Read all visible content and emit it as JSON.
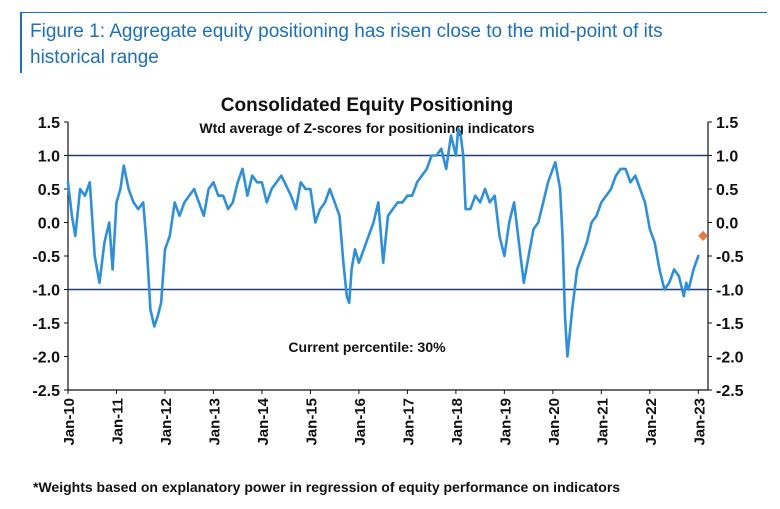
{
  "header": {
    "caption": "Figure 1: Aggregate equity positioning has risen close to the mid-point of its\nhistorical range"
  },
  "footnote": "*Weights based on explanatory power in regression of equity performance on indicators",
  "chart_data": {
    "type": "line",
    "title": "Consolidated Equity Positioning",
    "subtitle": "Wtd average of Z-scores for positioning indicators",
    "annotation": "Current percentile: 30%",
    "xlabel": "",
    "ylabel": "",
    "ylim": [
      -2.5,
      1.5
    ],
    "yticks": [
      1.5,
      1.0,
      0.5,
      0.0,
      -0.5,
      -1.0,
      -1.5,
      -2.0,
      -2.5
    ],
    "ytick_labels": [
      "1.5",
      "1.0",
      "0.5",
      "0.0",
      "-0.5",
      "-1.0",
      "-1.5",
      "-2.0",
      "-2.5"
    ],
    "xlim": [
      2010.0,
      2023.2
    ],
    "xticks": [
      2010,
      2011,
      2012,
      2013,
      2014,
      2015,
      2016,
      2017,
      2018,
      2019,
      2020,
      2021,
      2022,
      2023
    ],
    "xtick_labels": [
      "Jan-10",
      "Jan-11",
      "Jan-12",
      "Jan-13",
      "Jan-14",
      "Jan-15",
      "Jan-16",
      "Jan-17",
      "Jan-18",
      "Jan-19",
      "Jan-20",
      "Jan-21",
      "Jan-22",
      "Jan-23"
    ],
    "reference_lines": [
      1.0,
      -1.0
    ],
    "grid": false,
    "colors": {
      "line": "#2f8fd8",
      "reference": "#1f3f7a",
      "marker": "#e8793a",
      "caption": "#1d6fb8"
    },
    "series": [
      {
        "x": [
          2010.0,
          2010.08,
          2010.15,
          2010.25,
          2010.35,
          2010.45,
          2010.55,
          2010.65,
          2010.75,
          2010.85,
          2010.92,
          2011.0,
          2011.08,
          2011.15,
          2011.25,
          2011.35,
          2011.45,
          2011.55,
          2011.62,
          2011.7,
          2011.78,
          2011.85,
          2011.92,
          2012.0,
          2012.1,
          2012.2,
          2012.3,
          2012.4,
          2012.5,
          2012.6,
          2012.7,
          2012.8,
          2012.9,
          2013.0,
          2013.1,
          2013.2,
          2013.3,
          2013.4,
          2013.5,
          2013.6,
          2013.7,
          2013.8,
          2013.9,
          2014.0,
          2014.1,
          2014.2,
          2014.3,
          2014.4,
          2014.5,
          2014.6,
          2014.7,
          2014.8,
          2014.9,
          2015.0,
          2015.1,
          2015.2,
          2015.3,
          2015.4,
          2015.5,
          2015.6,
          2015.68,
          2015.75,
          2015.8,
          2015.85,
          2015.92,
          2016.0,
          2016.1,
          2016.2,
          2016.3,
          2016.4,
          2016.5,
          2016.6,
          2016.7,
          2016.8,
          2016.9,
          2017.0,
          2017.1,
          2017.2,
          2017.3,
          2017.4,
          2017.5,
          2017.6,
          2017.7,
          2017.8,
          2017.9,
          2018.0,
          2018.05,
          2018.1,
          2018.15,
          2018.2,
          2018.3,
          2018.4,
          2018.5,
          2018.6,
          2018.7,
          2018.8,
          2018.9,
          2019.0,
          2019.1,
          2019.2,
          2019.3,
          2019.4,
          2019.5,
          2019.6,
          2019.7,
          2019.8,
          2019.9,
          2020.0,
          2020.05,
          2020.1,
          2020.15,
          2020.2,
          2020.25,
          2020.3,
          2020.4,
          2020.5,
          2020.6,
          2020.7,
          2020.8,
          2020.9,
          2021.0,
          2021.1,
          2021.2,
          2021.3,
          2021.4,
          2021.5,
          2021.6,
          2021.7,
          2021.8,
          2021.9,
          2022.0,
          2022.1,
          2022.2,
          2022.3,
          2022.4,
          2022.5,
          2022.6,
          2022.7,
          2022.75,
          2022.8,
          2022.9,
          2023.0
        ],
        "values": [
          0.6,
          0.1,
          -0.2,
          0.5,
          0.4,
          0.6,
          -0.5,
          -0.9,
          -0.3,
          0.0,
          -0.7,
          0.3,
          0.5,
          0.85,
          0.5,
          0.3,
          0.2,
          0.3,
          -0.3,
          -1.3,
          -1.55,
          -1.4,
          -1.2,
          -0.4,
          -0.2,
          0.3,
          0.1,
          0.3,
          0.4,
          0.5,
          0.3,
          0.1,
          0.5,
          0.6,
          0.4,
          0.4,
          0.2,
          0.3,
          0.6,
          0.8,
          0.4,
          0.7,
          0.6,
          0.6,
          0.3,
          0.5,
          0.6,
          0.7,
          0.55,
          0.4,
          0.2,
          0.6,
          0.5,
          0.5,
          0.0,
          0.2,
          0.3,
          0.5,
          0.3,
          0.1,
          -0.6,
          -1.1,
          -1.2,
          -0.7,
          -0.4,
          -0.6,
          -0.4,
          -0.2,
          0.0,
          0.3,
          -0.6,
          0.1,
          0.2,
          0.3,
          0.3,
          0.4,
          0.4,
          0.6,
          0.7,
          0.8,
          1.0,
          1.0,
          1.1,
          0.8,
          1.3,
          1.0,
          1.4,
          1.3,
          1.0,
          0.2,
          0.2,
          0.4,
          0.3,
          0.5,
          0.3,
          0.4,
          -0.2,
          -0.5,
          0.0,
          0.3,
          -0.3,
          -0.9,
          -0.5,
          -0.1,
          0.0,
          0.3,
          0.6,
          0.8,
          0.9,
          0.7,
          0.5,
          -0.2,
          -1.4,
          -2.0,
          -1.3,
          -0.7,
          -0.5,
          -0.3,
          0.0,
          0.1,
          0.3,
          0.4,
          0.5,
          0.7,
          0.8,
          0.8,
          0.6,
          0.7,
          0.5,
          0.3,
          -0.1,
          -0.3,
          -0.7,
          -1.0,
          -0.9,
          -0.7,
          -0.8,
          -1.1,
          -0.9,
          -1.0,
          -0.7,
          -0.5
        ]
      }
    ],
    "current_point": {
      "x": 2023.1,
      "y": -0.2
    }
  }
}
